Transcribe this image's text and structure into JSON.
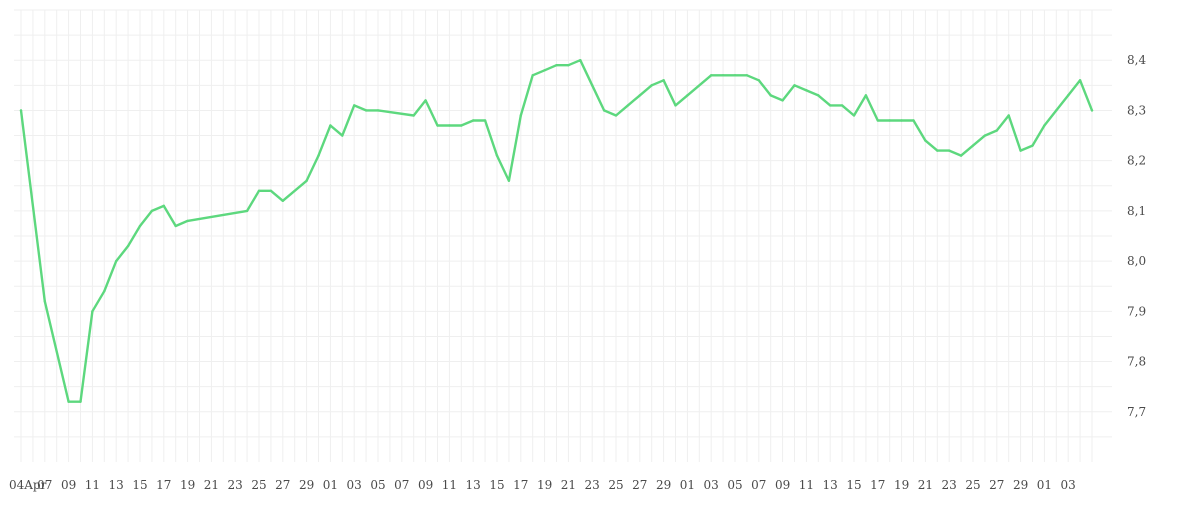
{
  "chart_data": {
    "type": "line",
    "title": "",
    "xlabel": "",
    "ylabel": "",
    "ylim": [
      7.6,
      8.5
    ],
    "grid": true,
    "y_ticks": [
      "7,7",
      "7,8",
      "7,9",
      "8,0",
      "8,1",
      "8,2",
      "8,3",
      "8,4"
    ],
    "x_tick_labels": [
      "04Apr",
      "07",
      "09",
      "11",
      "13",
      "15",
      "17",
      "19",
      "21",
      "23",
      "25",
      "27",
      "29",
      "01",
      "03",
      "05",
      "07",
      "09",
      "11",
      "13",
      "15",
      "17",
      "19",
      "21",
      "23",
      "25",
      "27",
      "29",
      "01",
      "03",
      "05",
      "07",
      "09",
      "11",
      "13",
      "15",
      "17",
      "19",
      "21",
      "23",
      "25",
      "27",
      "29",
      "01",
      "03"
    ],
    "colors": {
      "series": "#5dd87e"
    },
    "series": [
      {
        "x": [
          "Apr 4",
          "Apr 6",
          "Apr 8",
          "Apr 9",
          "Apr 10",
          "Apr 11",
          "Apr 12",
          "Apr 13",
          "Apr 14",
          "Apr 15",
          "Apr 16",
          "Apr 17",
          "Apr 18",
          "Apr 23",
          "Apr 24",
          "Apr 25",
          "Apr 26",
          "Apr 28",
          "Apr 29",
          "Apr 30",
          "May 1",
          "May 2",
          "May 3",
          "May 4",
          "May 7",
          "May 8",
          "May 9",
          "May 10",
          "May 11",
          "May 12",
          "May 13",
          "May 14",
          "May 15",
          "May 16",
          "May 17",
          "May 18",
          "May 19",
          "May 20",
          "May 21",
          "May 22",
          "May 23",
          "May 24",
          "May 25",
          "May 26",
          "May 27",
          "May 28",
          "May 29",
          "May 30",
          "Jun 1",
          "Jun 2",
          "Jun 3",
          "Jun 4",
          "Jun 5",
          "Jun 6",
          "Jun 7",
          "Jun 8",
          "Jun 9",
          "Jun 10",
          "Jun 11",
          "Jun 12",
          "Jun 13",
          "Jun 14",
          "Jun 15",
          "Jun 16",
          "Jun 17",
          "Jun 18",
          "Jun 19",
          "Jun 20",
          "Jun 21",
          "Jun 22",
          "Jun 23",
          "Jun 24",
          "Jun 25",
          "Jun 26",
          "Jun 27",
          "Jun 28",
          "Jun 29",
          "Jun 30",
          "Jul 1",
          "Jul 2",
          "Jul 3"
        ],
        "values": [
          8.3,
          7.92,
          7.72,
          7.72,
          7.9,
          7.94,
          8.0,
          8.03,
          8.07,
          8.1,
          8.11,
          8.07,
          8.08,
          8.1,
          8.14,
          8.14,
          8.12,
          8.16,
          8.21,
          8.27,
          8.25,
          8.31,
          8.3,
          8.3,
          8.29,
          8.32,
          8.27,
          8.27,
          8.27,
          8.28,
          8.28,
          8.21,
          8.16,
          8.29,
          8.37,
          8.38,
          8.39,
          8.39,
          8.4,
          8.35,
          8.3,
          8.29,
          8.31,
          8.33,
          8.35,
          8.36,
          8.31,
          8.33,
          8.37,
          8.37,
          8.37,
          8.37,
          8.36,
          8.33,
          8.32,
          8.35,
          8.34,
          8.33,
          8.31,
          8.31,
          8.29,
          8.33,
          8.28,
          8.28,
          8.28,
          8.28,
          8.24,
          8.22,
          8.22,
          8.21,
          8.23,
          8.25,
          8.26,
          8.29,
          8.22,
          8.23,
          8.27,
          8.3,
          8.33,
          8.36,
          8.3
        ]
      }
    ]
  }
}
